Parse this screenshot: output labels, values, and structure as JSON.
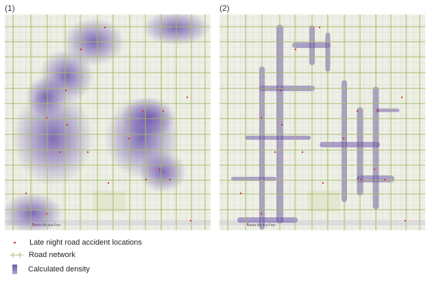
{
  "panels": [
    {
      "label": "(1)",
      "style": "kernel-density",
      "freeway_label": "Santa Monica Fwy"
    },
    {
      "label": "(2)",
      "style": "network-density",
      "freeway_label": "Santa Monica Fwy"
    }
  ],
  "legend": {
    "items": [
      {
        "label": "Late night road accident locations",
        "icon": "red-dot-icon",
        "color": "#d62a1e"
      },
      {
        "label": "Road network",
        "icon": "road-line-icon",
        "color": "#a8b86a"
      },
      {
        "label": "Calculated density",
        "icon": "density-swatch-icon",
        "color": "#7a66b0"
      }
    ]
  },
  "colors": {
    "road": "#a8b86a",
    "density": "#5b3fa6",
    "accident": "#d62a1e",
    "basemap": "#eef0e6"
  }
}
